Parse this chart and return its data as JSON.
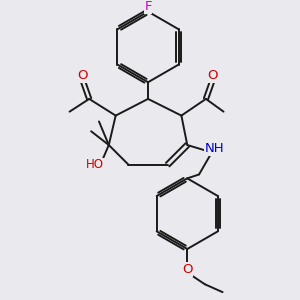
{
  "background_color": "#eaeaee",
  "bond_color": "#1a1a1a",
  "atom_colors": {
    "O": "#cc0000",
    "N": "#0000cc",
    "F": "#cc00cc",
    "H_teal": "#008080"
  },
  "figsize": [
    3.0,
    3.0
  ],
  "dpi": 100
}
